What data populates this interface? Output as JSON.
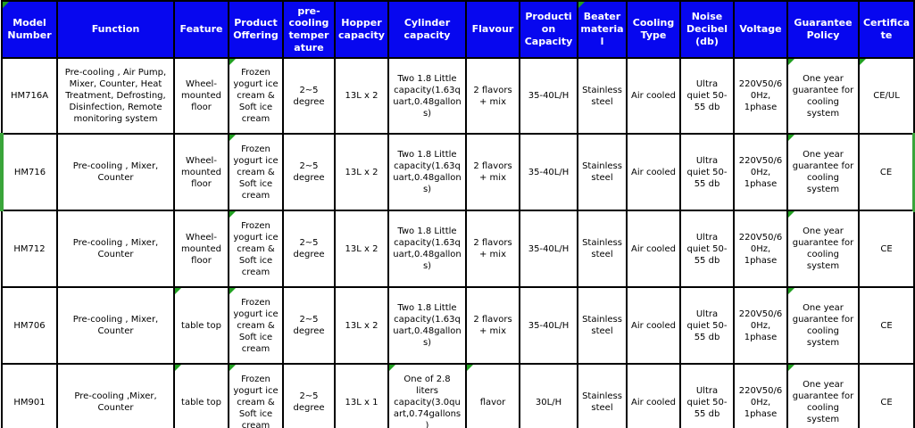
{
  "colors": {
    "header_bg": "#0707ef",
    "header_text": "#ffffff",
    "border": "#000000",
    "cell_bg": "#ffffff",
    "flag_green": "#21a021",
    "outline_green": "#3aa53a"
  },
  "table": {
    "columns": [
      {
        "key": "model",
        "label": "Model Number"
      },
      {
        "key": "function",
        "label": "Function"
      },
      {
        "key": "feature",
        "label": "Feature"
      },
      {
        "key": "product_offering",
        "label": "Product Offering"
      },
      {
        "key": "precooling",
        "label": "pre-cooling temperature"
      },
      {
        "key": "hopper",
        "label": "Hopper capacity"
      },
      {
        "key": "cylinder",
        "label": "Cylinder capacity"
      },
      {
        "key": "flavour",
        "label": "Flavour"
      },
      {
        "key": "production",
        "label": "Production Capacity"
      },
      {
        "key": "beater",
        "label": "Beater material"
      },
      {
        "key": "cooling",
        "label": "Cooling Type"
      },
      {
        "key": "noise",
        "label": "Noise Decibel (db)"
      },
      {
        "key": "voltage",
        "label": "Voltage"
      },
      {
        "key": "guarantee",
        "label": "Guarantee Policy"
      },
      {
        "key": "certificate",
        "label": "Certificate"
      }
    ],
    "header_flags": [
      "model",
      "beater",
      "sliver"
    ],
    "rows": [
      {
        "model": "HM716A",
        "function": "Pre-cooling , Air Pump, Mixer, Counter, Heat Treatment, Defrosting, Disinfection, Remote monitoring system",
        "feature": "Wheel-mounted floor",
        "product_offering": "Frozen yogurt ice cream & Soft ice cream",
        "precooling": "2~5 degree",
        "hopper": "13L x 2",
        "cylinder": "Two 1.8 Little capacity(1.63quart,0.48gallons)",
        "flavour": "2 flavors + mix",
        "production": "35-40L/H",
        "beater": "Stainless steel",
        "cooling": "Air cooled",
        "noise": "Ultra quiet 50-55 db",
        "voltage": "220V50/60Hz, 1phase",
        "guarantee": "One year guarantee for cooling system",
        "certificate": "CE/UL",
        "flags": [
          "product_offering",
          "guarantee",
          "certificate"
        ],
        "highlighted": false
      },
      {
        "model": "HM716",
        "function": "Pre-cooling , Mixer, Counter",
        "feature": "Wheel-mounted floor",
        "product_offering": "Frozen yogurt ice cream & Soft ice cream",
        "precooling": "2~5 degree",
        "hopper": "13L x 2",
        "cylinder": "Two 1.8 Little capacity(1.63quart,0.48gallons)",
        "flavour": "2 flavors + mix",
        "production": "35-40L/H",
        "beater": "Stainless steel",
        "cooling": "Air cooled",
        "noise": "Ultra quiet 50-55 db",
        "voltage": "220V50/60Hz, 1phase",
        "guarantee": "One year guarantee for cooling system",
        "certificate": "CE",
        "flags": [
          "product_offering",
          "guarantee"
        ],
        "highlighted": true
      },
      {
        "model": "HM712",
        "function": "Pre-cooling , Mixer, Counter",
        "feature": "Wheel-mounted floor",
        "product_offering": "Frozen yogurt ice cream & Soft ice cream",
        "precooling": "2~5 degree",
        "hopper": "13L x 2",
        "cylinder": "Two 1.8 Little capacity(1.63quart,0.48gallons)",
        "flavour": "2 flavors + mix",
        "production": "35-40L/H",
        "beater": "Stainless steel",
        "cooling": "Air cooled",
        "noise": "Ultra quiet 50-55 db",
        "voltage": "220V50/60Hz, 1phase",
        "guarantee": "One year guarantee for cooling system",
        "certificate": "CE",
        "flags": [
          "product_offering",
          "guarantee"
        ],
        "highlighted": false
      },
      {
        "model": "HM706",
        "function": "Pre-cooling , Mixer, Counter",
        "feature": "table top",
        "product_offering": "Frozen yogurt ice cream & Soft ice cream",
        "precooling": "2~5 degree",
        "hopper": "13L x 2",
        "cylinder": "Two 1.8 Little capacity(1.63quart,0.48gallons)",
        "flavour": "2 flavors + mix",
        "production": "35-40L/H",
        "beater": "Stainless steel",
        "cooling": "Air cooled",
        "noise": "Ultra quiet 50-55 db",
        "voltage": "220V50/60Hz, 1phase",
        "guarantee": "One year guarantee for cooling system",
        "certificate": "CE",
        "flags": [
          "feature",
          "product_offering",
          "guarantee"
        ],
        "highlighted": false
      },
      {
        "model": "HM901",
        "function": "Pre-cooling ,Mixer, Counter",
        "feature": "table top",
        "product_offering": "Frozen yogurt ice cream & Soft ice cream",
        "precooling": "2~5 degree",
        "hopper": "13L x 1",
        "cylinder": "One of 2.8 liters capacity(3.0quart,0.74gallons)",
        "flavour": "flavor",
        "production": "30L/H",
        "beater": "Stainless steel",
        "cooling": "Air cooled",
        "noise": "Ultra quiet 50-55 db",
        "voltage": "220V50/60Hz, 1phase",
        "guarantee": "One year guarantee for cooling system",
        "certificate": "CE",
        "flags": [
          "feature",
          "product_offering",
          "cylinder",
          "flavour",
          "guarantee"
        ],
        "highlighted": false
      }
    ]
  }
}
